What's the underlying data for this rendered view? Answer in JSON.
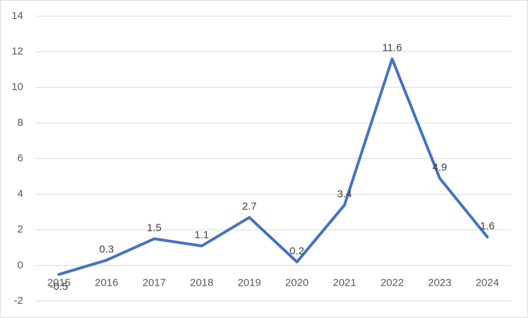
{
  "chart_data": {
    "type": "line",
    "categories": [
      "2015",
      "2016",
      "2017",
      "2018",
      "2019",
      "2020",
      "2021",
      "2022",
      "2023",
      "2024"
    ],
    "values": [
      -0.5,
      0.3,
      1.5,
      1.1,
      2.7,
      0.2,
      3.4,
      11.6,
      4.9,
      1.6
    ],
    "color": "#4472c4",
    "ylim": [
      -2,
      14
    ],
    "yticks": [
      -2,
      0,
      2,
      4,
      6,
      8,
      10,
      12,
      14
    ],
    "grid": true
  }
}
